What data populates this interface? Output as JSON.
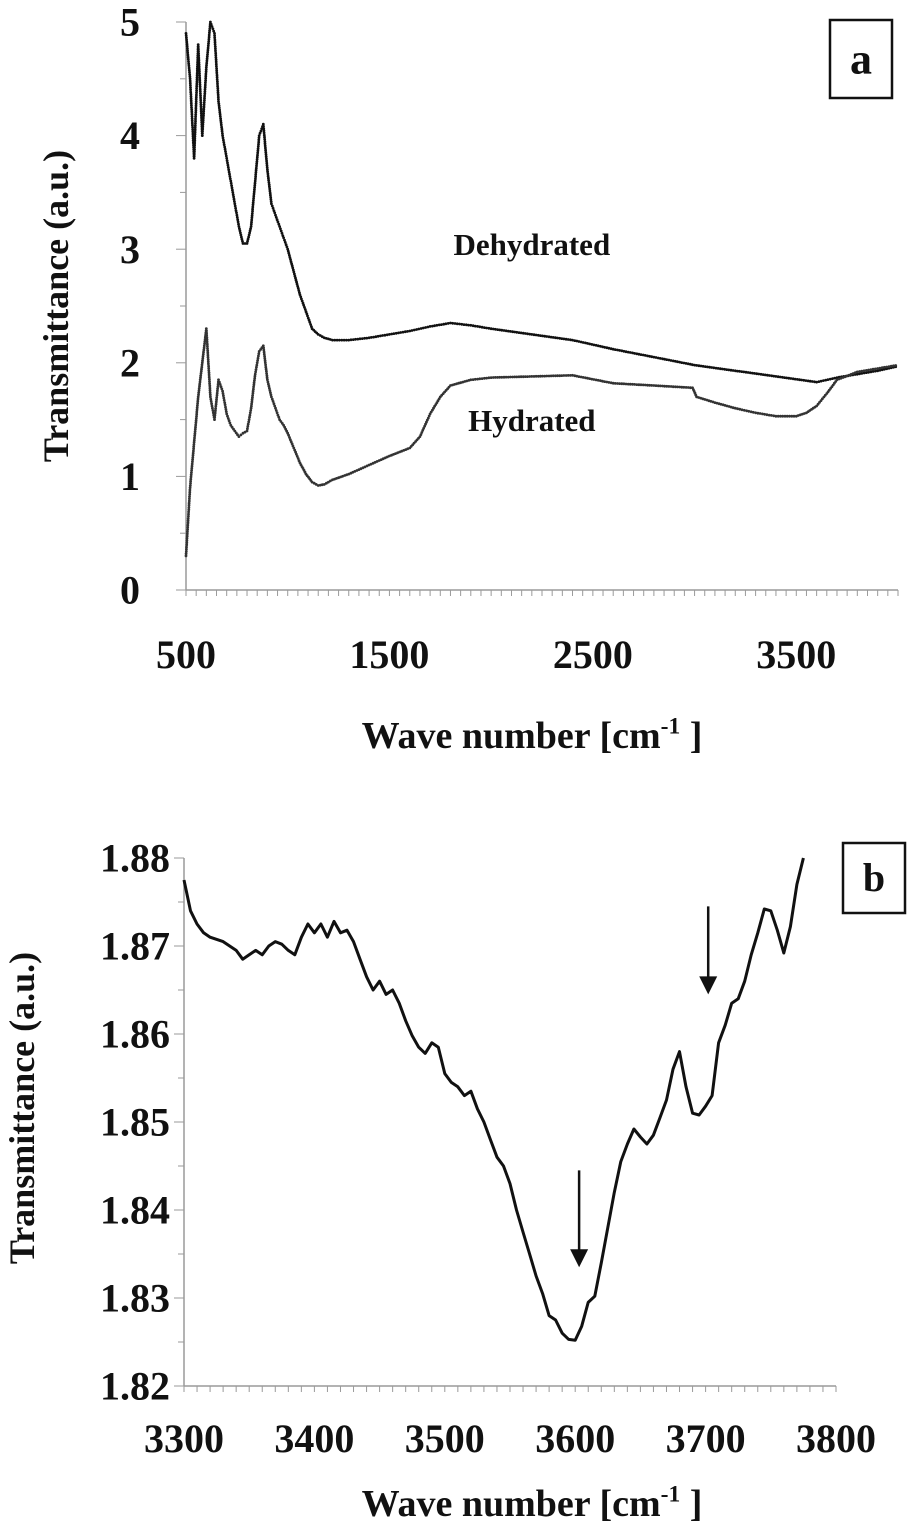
{
  "chart_data": [
    {
      "panel": "a",
      "type": "scatter",
      "panel_label": "a",
      "xlabel_main": "Wave number [cm",
      "xlabel_sup": "-1",
      "xlabel_end": " ]",
      "ylabel": "Transmittance (a.u.)",
      "xlim": [
        500,
        4000
      ],
      "ylim": [
        0,
        5
      ],
      "x_ticks": [
        500,
        1500,
        2500,
        3500
      ],
      "x_tick_labels": [
        "500",
        "1500",
        "2500",
        "3500"
      ],
      "y_ticks": [
        0,
        1,
        2,
        3,
        4,
        5
      ],
      "y_tick_labels": [
        "0",
        "1",
        "2",
        "3",
        "4",
        "5"
      ],
      "series": [
        {
          "name": "Dehydrated",
          "color": "#111111",
          "x": [
            500,
            520,
            540,
            560,
            580,
            600,
            620,
            640,
            660,
            680,
            700,
            720,
            740,
            760,
            780,
            800,
            820,
            840,
            860,
            880,
            900,
            920,
            940,
            960,
            980,
            1000,
            1030,
            1060,
            1090,
            1120,
            1150,
            1180,
            1220,
            1300,
            1400,
            1500,
            1600,
            1700,
            1800,
            1900,
            2000,
            2200,
            2400,
            2600,
            2800,
            3000,
            3200,
            3400,
            3600,
            3700,
            3800,
            3900,
            4000
          ],
          "y": [
            4.9,
            4.5,
            3.8,
            4.8,
            4.0,
            4.6,
            5.0,
            4.9,
            4.3,
            4.0,
            3.8,
            3.6,
            3.4,
            3.2,
            3.05,
            3.05,
            3.2,
            3.6,
            4.0,
            4.1,
            3.7,
            3.4,
            3.3,
            3.2,
            3.1,
            3.0,
            2.8,
            2.6,
            2.45,
            2.3,
            2.25,
            2.22,
            2.2,
            2.2,
            2.22,
            2.25,
            2.28,
            2.32,
            2.35,
            2.33,
            2.3,
            2.25,
            2.2,
            2.12,
            2.05,
            1.98,
            1.93,
            1.88,
            1.83,
            1.87,
            1.9,
            1.93,
            1.97
          ]
        },
        {
          "name": "Hydrated",
          "color": "#333333",
          "x": [
            500,
            520,
            540,
            560,
            580,
            600,
            620,
            640,
            660,
            680,
            700,
            720,
            740,
            760,
            780,
            800,
            820,
            840,
            860,
            880,
            900,
            920,
            940,
            960,
            980,
            1000,
            1030,
            1060,
            1090,
            1120,
            1150,
            1180,
            1220,
            1300,
            1400,
            1500,
            1600,
            1650,
            1700,
            1750,
            1800,
            1900,
            2000,
            2200,
            2400,
            2600,
            2800,
            2990,
            3010,
            3100,
            3200,
            3300,
            3400,
            3500,
            3550,
            3600,
            3650,
            3700,
            3800,
            3900,
            4000
          ],
          "y": [
            0.3,
            0.9,
            1.3,
            1.7,
            2.0,
            2.3,
            1.7,
            1.5,
            1.85,
            1.75,
            1.55,
            1.45,
            1.4,
            1.35,
            1.38,
            1.4,
            1.6,
            1.9,
            2.1,
            2.15,
            1.85,
            1.7,
            1.6,
            1.5,
            1.45,
            1.38,
            1.25,
            1.12,
            1.02,
            0.95,
            0.92,
            0.93,
            0.97,
            1.02,
            1.1,
            1.18,
            1.25,
            1.35,
            1.55,
            1.7,
            1.8,
            1.85,
            1.87,
            1.88,
            1.89,
            1.82,
            1.8,
            1.78,
            1.7,
            1.65,
            1.6,
            1.56,
            1.53,
            1.53,
            1.56,
            1.62,
            1.73,
            1.85,
            1.92,
            1.95,
            1.98
          ]
        }
      ]
    },
    {
      "panel": "b",
      "type": "line",
      "panel_label": "b",
      "xlabel_main": "Wave number [cm",
      "xlabel_sup": "-1",
      "xlabel_end": " ]",
      "ylabel": "Transmittance (a.u.)",
      "xlim": [
        3300,
        3800
      ],
      "ylim": [
        1.82,
        1.88
      ],
      "x_ticks": [
        3300,
        3400,
        3500,
        3600,
        3700,
        3800
      ],
      "x_tick_labels": [
        "3300",
        "3400",
        "3500",
        "3600",
        "3700",
        "3800"
      ],
      "y_ticks": [
        1.82,
        1.83,
        1.84,
        1.85,
        1.86,
        1.87,
        1.88
      ],
      "y_tick_labels": [
        "1.82",
        "1.83",
        "1.84",
        "1.85",
        "1.86",
        "1.87",
        "1.88"
      ],
      "annotations": [
        {
          "type": "arrow",
          "x": 3603,
          "y_from": 1.8445,
          "y_to": 1.8335
        },
        {
          "type": "arrow",
          "x": 3702,
          "y_from": 1.8745,
          "y_to": 1.8645
        }
      ],
      "series": [
        {
          "color": "#111111",
          "x": [
            3300,
            3305,
            3310,
            3315,
            3320,
            3330,
            3340,
            3345,
            3350,
            3355,
            3360,
            3365,
            3370,
            3375,
            3380,
            3385,
            3390,
            3395,
            3400,
            3405,
            3410,
            3415,
            3420,
            3425,
            3430,
            3435,
            3440,
            3445,
            3450,
            3455,
            3460,
            3465,
            3470,
            3475,
            3480,
            3485,
            3490,
            3495,
            3500,
            3505,
            3510,
            3515,
            3520,
            3525,
            3530,
            3535,
            3540,
            3545,
            3550,
            3555,
            3560,
            3565,
            3570,
            3575,
            3580,
            3585,
            3590,
            3595,
            3600,
            3605,
            3610,
            3615,
            3620,
            3625,
            3630,
            3635,
            3640,
            3645,
            3650,
            3655,
            3660,
            3665,
            3670,
            3675,
            3680,
            3685,
            3690,
            3695,
            3700,
            3705,
            3710,
            3715,
            3720,
            3725,
            3730,
            3735,
            3740,
            3745,
            3750,
            3755,
            3760,
            3765,
            3770,
            3775
          ],
          "y": [
            1.8775,
            1.874,
            1.8725,
            1.8715,
            1.871,
            1.8705,
            1.8695,
            1.8685,
            1.869,
            1.8695,
            1.869,
            1.87,
            1.8705,
            1.8702,
            1.8695,
            1.869,
            1.871,
            1.8725,
            1.8715,
            1.8725,
            1.871,
            1.8728,
            1.8715,
            1.8718,
            1.8705,
            1.8685,
            1.8665,
            1.865,
            1.866,
            1.8645,
            1.865,
            1.8635,
            1.8615,
            1.8598,
            1.8585,
            1.8578,
            1.859,
            1.8585,
            1.8555,
            1.8545,
            1.854,
            1.853,
            1.8535,
            1.8515,
            1.85,
            1.848,
            1.846,
            1.845,
            1.843,
            1.84,
            1.8375,
            1.835,
            1.8325,
            1.8305,
            1.828,
            1.8275,
            1.826,
            1.8253,
            1.8252,
            1.8268,
            1.8295,
            1.8302,
            1.834,
            1.838,
            1.842,
            1.8455,
            1.8475,
            1.8492,
            1.8483,
            1.8475,
            1.8485,
            1.8505,
            1.8525,
            1.856,
            1.858,
            1.854,
            1.851,
            1.8508,
            1.8518,
            1.853,
            1.859,
            1.861,
            1.8635,
            1.864,
            1.866,
            1.869,
            1.8715,
            1.8742,
            1.874,
            1.8718,
            1.8692,
            1.8722,
            1.877,
            1.88
          ]
        }
      ]
    }
  ],
  "series_labels": [
    {
      "text": "Dehydrated",
      "x": 2200,
      "y": 2.95
    },
    {
      "text": "Hydrated",
      "x": 2200,
      "y": 1.4
    }
  ]
}
